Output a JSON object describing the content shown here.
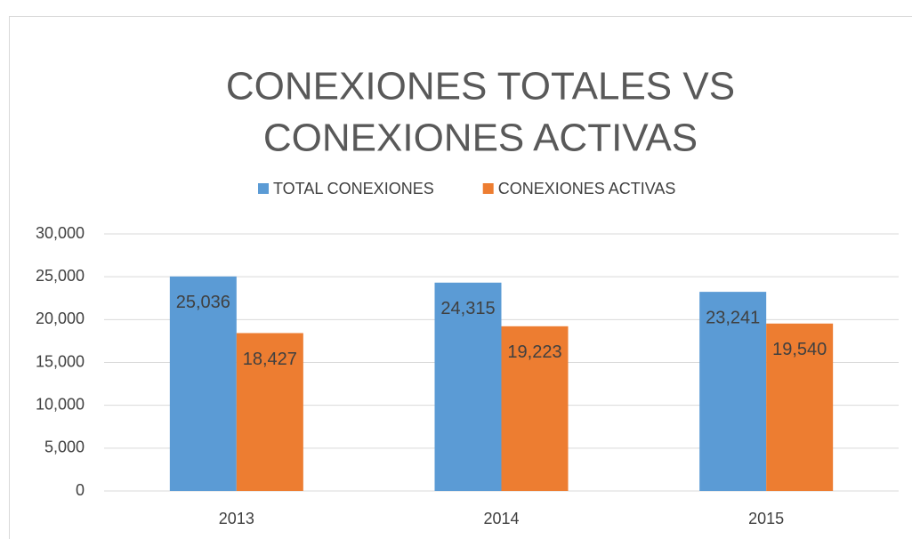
{
  "chart_data": {
    "type": "bar",
    "title": "CONEXIONES TOTALES VS CONEXIONES ACTIVAS",
    "title_lines": [
      "CONEXIONES TOTALES VS",
      "CONEXIONES ACTIVAS"
    ],
    "categories": [
      "2013",
      "2014",
      "2015"
    ],
    "series": [
      {
        "name": "TOTAL CONEXIONES",
        "color": "#5b9bd5",
        "values": [
          25036,
          24315,
          23241
        ],
        "value_labels": [
          "25,036",
          "24,315",
          "23,241"
        ]
      },
      {
        "name": "CONEXIONES ACTIVAS",
        "color": "#ed7d31",
        "values": [
          18427,
          19223,
          19540
        ],
        "value_labels": [
          "18,427",
          "19,223",
          "19,540"
        ]
      }
    ],
    "ylim": [
      0,
      30000
    ],
    "yticks": [
      0,
      {
        "value": 5000,
        "label": "5,000"
      },
      {
        "value": 10000,
        "label": "10,000"
      },
      {
        "value": 15000,
        "label": "15,000"
      },
      {
        "value": 20000,
        "label": "20,000"
      },
      {
        "value": 25000,
        "label": "25,000"
      },
      {
        "value": 30000,
        "label": "30,000"
      }
    ],
    "grid": true,
    "legend": "top"
  }
}
